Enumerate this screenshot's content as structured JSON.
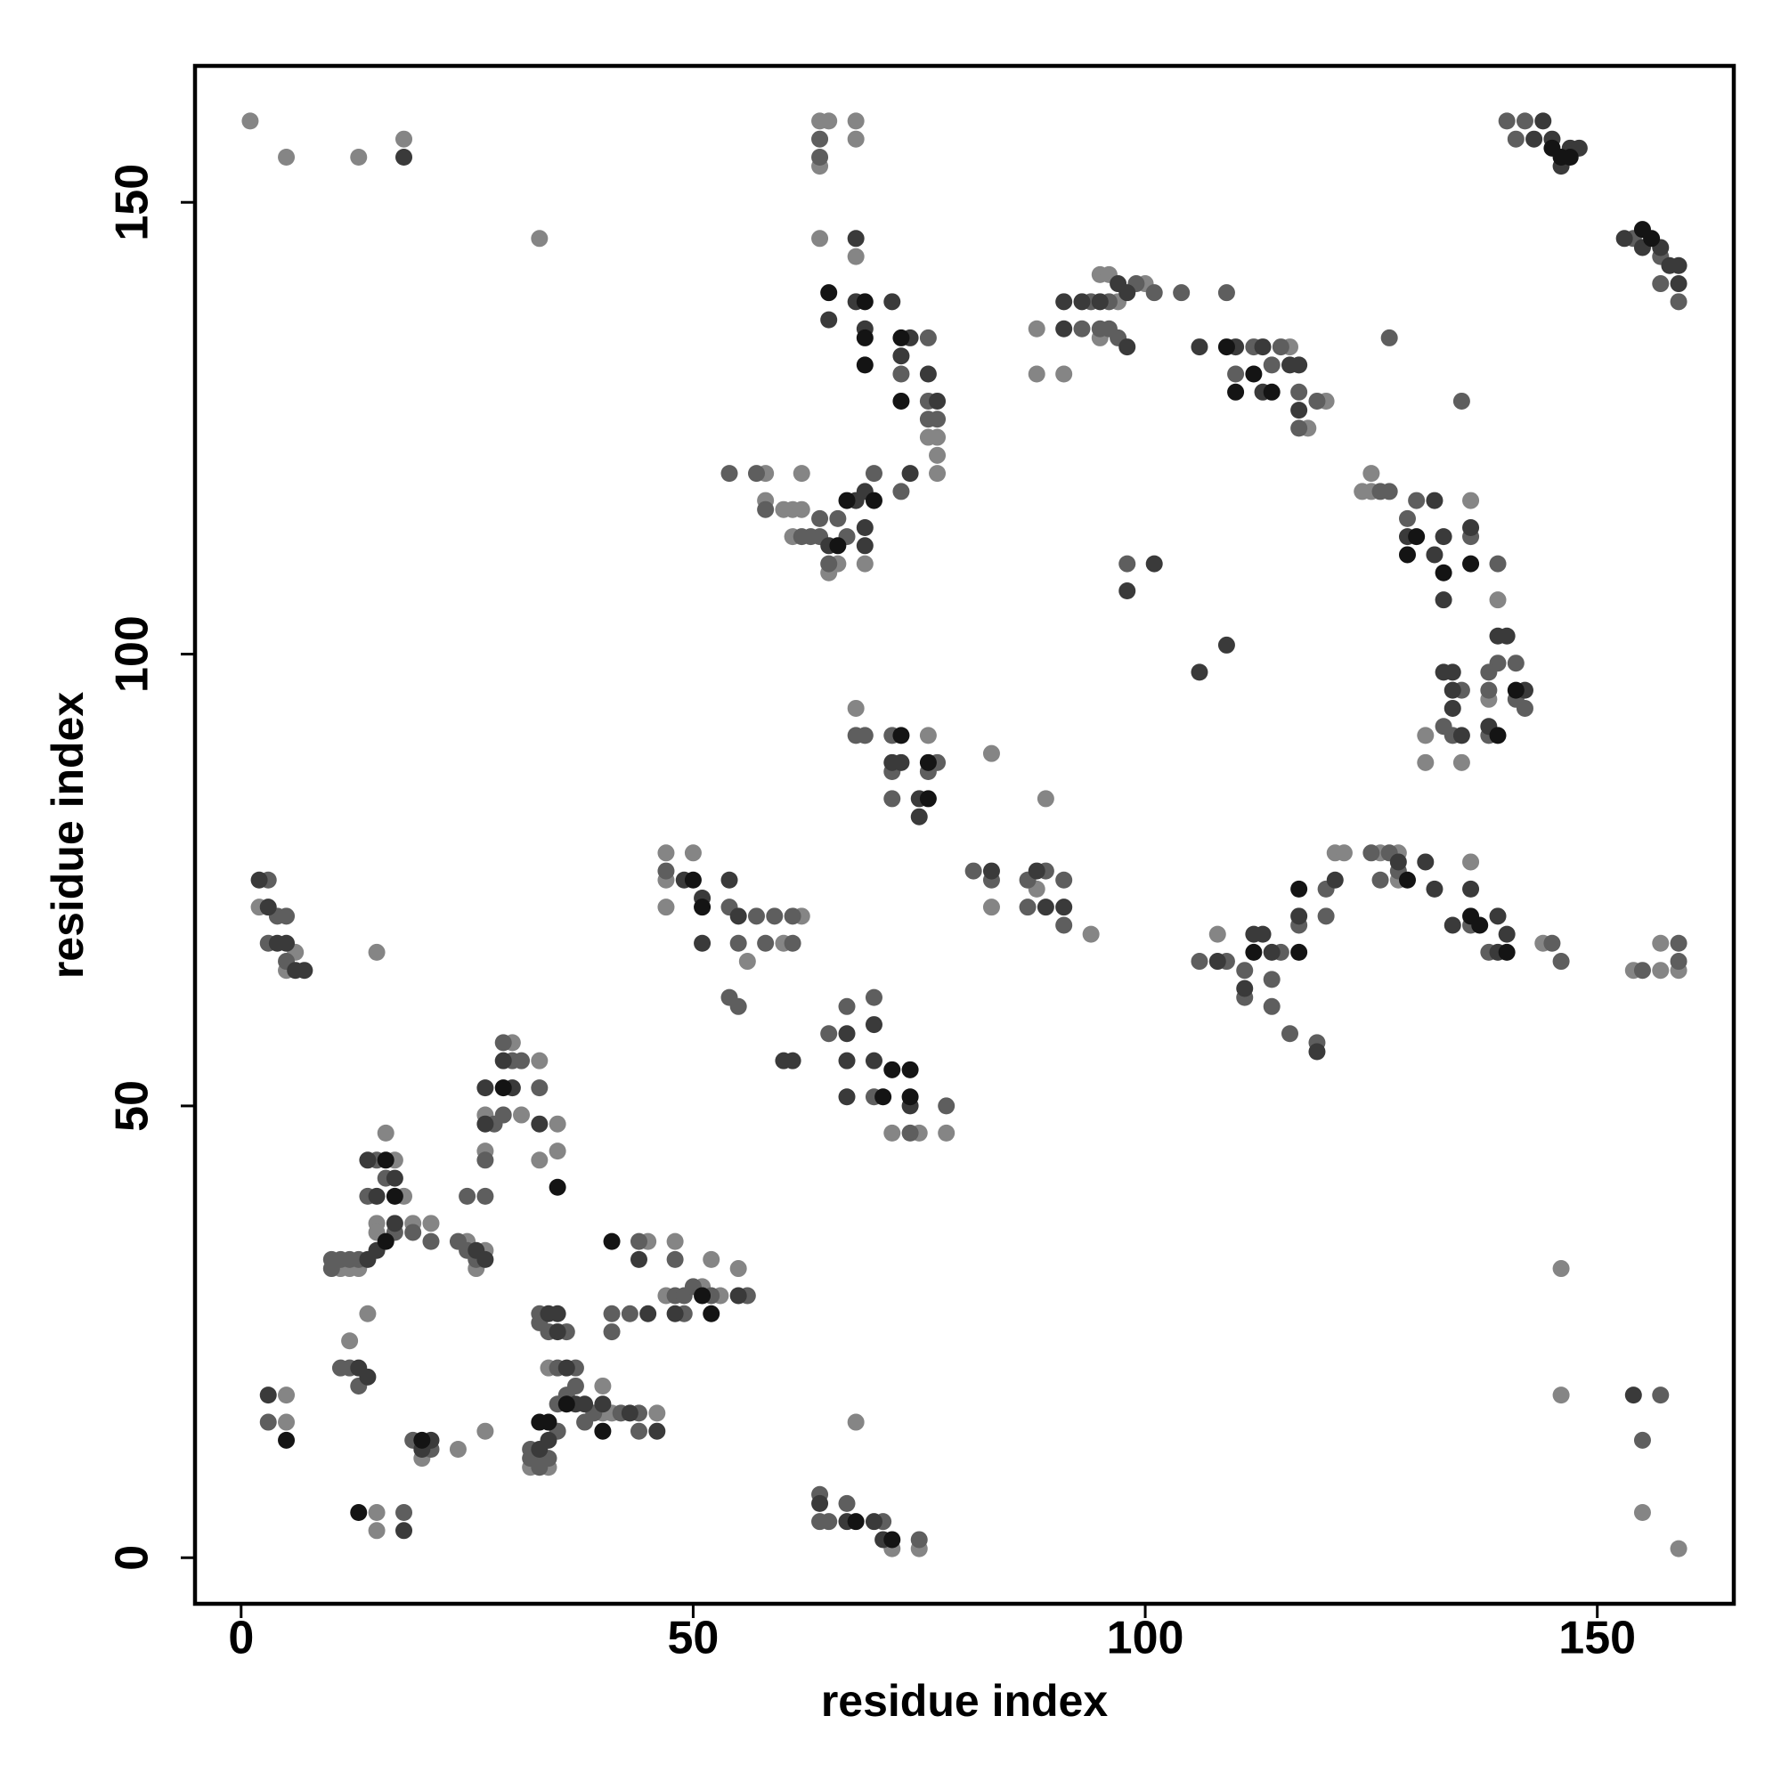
{
  "chart_data": {
    "type": "scatter",
    "x_label": "residue index",
    "y_label": "residue index",
    "xlim": [
      -5.1,
      165.1
    ],
    "ylim": [
      -5.1,
      165.1
    ],
    "xticks": [
      0,
      50,
      100,
      150
    ],
    "yticks": [
      0,
      50,
      100,
      150
    ],
    "series": [
      {
        "color": "#858585",
        "x": [
          1,
          5,
          13,
          18,
          33,
          64,
          65,
          68,
          68,
          64,
          64,
          68,
          77,
          76,
          77,
          77,
          69,
          66,
          65,
          58,
          62,
          61,
          60,
          62,
          61,
          58,
          95,
          96,
          97,
          100,
          88,
          95,
          88,
          91,
          116,
          118,
          120,
          125,
          124,
          125,
          136,
          139,
          138,
          131,
          131,
          135,
          68,
          76,
          83,
          89,
          83,
          88,
          94,
          47,
          50,
          47,
          47,
          62,
          60,
          56,
          72,
          75,
          78,
          108,
          121,
          122,
          126,
          128,
          128,
          136,
          144,
          154,
          157,
          157,
          159,
          146,
          146,
          155,
          159,
          2,
          5,
          6,
          15,
          16,
          17,
          18,
          15,
          15,
          19,
          21,
          11,
          12,
          13,
          25,
          27,
          26,
          27,
          27,
          31,
          30,
          33,
          35,
          35,
          33,
          14,
          12,
          34,
          40,
          40,
          41,
          46,
          32,
          34,
          27,
          24,
          20,
          5,
          5,
          45,
          48,
          52,
          47,
          53,
          55,
          51,
          15,
          15,
          68,
          72,
          75
        ],
        "y": [
          159,
          155,
          155,
          157,
          146,
          159,
          159,
          159,
          157,
          154,
          146,
          144,
          124,
          124,
          122,
          120,
          110,
          110,
          109,
          120,
          120,
          116,
          116,
          116,
          113,
          117,
          142,
          142,
          139,
          141,
          136,
          135,
          131,
          131,
          134,
          125,
          128,
          120,
          118,
          118,
          117,
          106,
          95,
          91,
          88,
          88,
          94,
          91,
          89,
          84,
          72,
          74,
          69,
          78,
          78,
          75,
          72,
          71,
          68,
          66,
          47,
          47,
          47,
          69,
          78,
          78,
          78,
          78,
          75,
          77,
          68,
          65,
          65,
          68,
          65,
          32,
          18,
          5,
          1,
          72,
          65,
          67,
          67,
          47,
          44,
          40,
          37,
          36,
          37,
          37,
          32,
          32,
          32,
          35,
          34,
          32,
          45,
          49,
          49,
          57,
          55,
          48,
          45,
          44,
          27,
          24,
          21,
          16,
          19,
          16,
          16,
          10,
          10,
          14,
          12,
          11,
          15,
          18,
          35,
          35,
          33,
          29,
          29,
          32,
          30,
          5,
          3,
          15,
          1,
          1
        ]
      },
      {
        "color": "#5e5e5e",
        "x": [
          64,
          64,
          76,
          73,
          76,
          76,
          77,
          73,
          70,
          64,
          66,
          67,
          65,
          54,
          57,
          58,
          62,
          63,
          64,
          140,
          141,
          142,
          154,
          157,
          157,
          159,
          94,
          96,
          99,
          101,
          93,
          95,
          96,
          97,
          104,
          109,
          112,
          115,
          110,
          114,
          117,
          119,
          117,
          126,
          127,
          130,
          129,
          136,
          139,
          139,
          141,
          141,
          142,
          138,
          138,
          135,
          133,
          134,
          138,
          127,
          135,
          98,
          68,
          69,
          72,
          76,
          72,
          77,
          72,
          81,
          83,
          87,
          89,
          87,
          91,
          91,
          47,
          54,
          57,
          59,
          61,
          55,
          58,
          61,
          54,
          55,
          65,
          67,
          70,
          70,
          78,
          74,
          106,
          109,
          115,
          117,
          114,
          111,
          111,
          114,
          116,
          119,
          120,
          120,
          125,
          127,
          128,
          126,
          136,
          138,
          146,
          145,
          155,
          159,
          159,
          157,
          155,
          3,
          4,
          5,
          5,
          3,
          15,
          16,
          14,
          17,
          19,
          21,
          10,
          11,
          12,
          13,
          10,
          24,
          25,
          26,
          25,
          27,
          27,
          28,
          29,
          30,
          31,
          29,
          33,
          33,
          33,
          34,
          36,
          35,
          37,
          37,
          36,
          35,
          39,
          42,
          44,
          44,
          38,
          35,
          32,
          32,
          33,
          34,
          33,
          19,
          21,
          11,
          12,
          13,
          3,
          44,
          48,
          49,
          52,
          56,
          41,
          41,
          43,
          49,
          50,
          48,
          64,
          64,
          65,
          67,
          71,
          75,
          18
        ],
        "y": [
          157,
          155,
          135,
          131,
          128,
          126,
          126,
          118,
          120,
          115,
          115,
          113,
          110,
          120,
          120,
          116,
          113,
          113,
          113,
          159,
          157,
          159,
          146,
          144,
          141,
          139,
          139,
          139,
          141,
          140,
          136,
          136,
          136,
          135,
          140,
          140,
          134,
          134,
          131,
          132,
          129,
          128,
          125,
          118,
          118,
          117,
          115,
          113,
          110,
          99,
          99,
          95,
          94,
          98,
          96,
          96,
          92,
          91,
          91,
          135,
          128,
          110,
          91,
          91,
          91,
          87,
          87,
          88,
          84,
          76,
          75,
          75,
          76,
          72,
          75,
          70,
          76,
          72,
          71,
          71,
          71,
          68,
          68,
          68,
          62,
          61,
          58,
          61,
          62,
          51,
          50,
          47,
          66,
          66,
          67,
          70,
          64,
          65,
          62,
          61,
          58,
          57,
          71,
          74,
          78,
          78,
          76,
          75,
          70,
          67,
          66,
          68,
          65,
          68,
          66,
          18,
          13,
          75,
          71,
          66,
          71,
          68,
          44,
          42,
          40,
          36,
          36,
          35,
          33,
          33,
          33,
          33,
          32,
          35,
          34,
          33,
          40,
          40,
          44,
          48,
          49,
          55,
          55,
          57,
          52,
          26,
          27,
          25,
          25,
          21,
          21,
          19,
          18,
          17,
          16,
          16,
          16,
          14,
          15,
          14,
          12,
          11,
          11,
          11,
          10,
          13,
          12,
          21,
          21,
          19,
          15,
          35,
          29,
          29,
          29,
          29,
          27,
          25,
          27,
          27,
          30,
          33,
          7,
          4,
          4,
          6,
          4,
          2,
          5
        ]
      },
      {
        "color": "#3a3a3a",
        "x": [
          18,
          68,
          65,
          68,
          69,
          72,
          74,
          73,
          76,
          77,
          74,
          69,
          68,
          65,
          69,
          69,
          143,
          144,
          145,
          146,
          147,
          148,
          153,
          155,
          157,
          158,
          159,
          159,
          91,
          93,
          95,
          97,
          98,
          91,
          98,
          106,
          110,
          113,
          116,
          117,
          113,
          117,
          129,
          132,
          133,
          136,
          132,
          133,
          139,
          140,
          142,
          134,
          133,
          134,
          134,
          135,
          138,
          101,
          98,
          106,
          109,
          72,
          73,
          75,
          75,
          83,
          88,
          89,
          91,
          49,
          54,
          51,
          55,
          51,
          60,
          61,
          67,
          70,
          67,
          70,
          67,
          74,
          108,
          112,
          113,
          114,
          117,
          111,
          119,
          121,
          128,
          131,
          132,
          134,
          136,
          139,
          140,
          139,
          154,
          2,
          3,
          4,
          5,
          6,
          7,
          14,
          15,
          17,
          17,
          14,
          15,
          13,
          14,
          26,
          27,
          27,
          27,
          30,
          29,
          33,
          34,
          35,
          35,
          36,
          37,
          38,
          40,
          43,
          46,
          34,
          33,
          21,
          20,
          3,
          45,
          48,
          44,
          55,
          64,
          67,
          70,
          71,
          18
        ],
        "y": [
          155,
          146,
          137,
          139,
          136,
          139,
          135,
          133,
          131,
          128,
          120,
          118,
          117,
          112,
          112,
          114,
          157,
          159,
          157,
          154,
          156,
          156,
          146,
          145,
          145,
          143,
          143,
          141,
          139,
          139,
          139,
          141,
          140,
          136,
          134,
          134,
          134,
          134,
          132,
          132,
          129,
          127,
          113,
          117,
          113,
          114,
          111,
          106,
          102,
          102,
          96,
          98,
          98,
          96,
          94,
          91,
          92,
          110,
          107,
          98,
          101,
          88,
          88,
          84,
          82,
          76,
          76,
          72,
          72,
          75,
          75,
          73,
          71,
          68,
          55,
          55,
          58,
          59,
          55,
          55,
          51,
          50,
          66,
          69,
          69,
          67,
          71,
          63,
          56,
          75,
          77,
          77,
          74,
          70,
          74,
          71,
          69,
          67,
          18,
          75,
          72,
          68,
          68,
          65,
          65,
          44,
          40,
          42,
          37,
          33,
          34,
          21,
          20,
          34,
          33,
          48,
          52,
          52,
          55,
          48,
          27,
          27,
          25,
          21,
          17,
          17,
          17,
          16,
          14,
          13,
          12,
          13,
          12,
          18,
          27,
          27,
          33,
          29,
          6,
          4,
          4,
          2,
          3
        ]
      },
      {
        "color": "#141414",
        "x": [
          69,
          69,
          69,
          73,
          73,
          67,
          70,
          66,
          65,
          145,
          146,
          147,
          155,
          156,
          109,
          112,
          110,
          114,
          130,
          129,
          133,
          136,
          139,
          141,
          50,
          51,
          73,
          76,
          76,
          74,
          74,
          72,
          71,
          129,
          136,
          137,
          140,
          117,
          17,
          16,
          16,
          29,
          35,
          34,
          33,
          36,
          40,
          41,
          51,
          52,
          13,
          68,
          72,
          5,
          20,
          112,
          117
        ],
        "y": [
          139,
          135,
          132,
          135,
          128,
          117,
          117,
          112,
          140,
          156,
          155,
          155,
          147,
          146,
          134,
          131,
          129,
          129,
          113,
          111,
          109,
          110,
          91,
          96,
          75,
          72,
          91,
          88,
          84,
          54,
          51,
          54,
          51,
          75,
          71,
          70,
          67,
          74,
          40,
          44,
          35,
          52,
          41,
          15,
          15,
          17,
          14,
          35,
          29,
          27,
          5,
          4,
          2,
          13,
          13,
          67,
          67
        ]
      }
    ]
  }
}
